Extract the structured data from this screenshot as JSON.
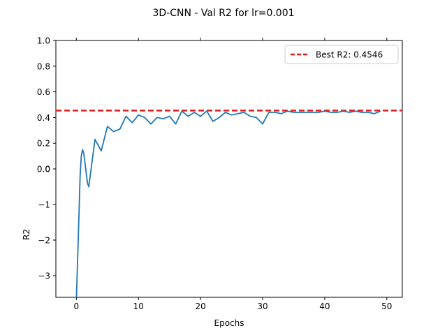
{
  "chart_data": {
    "type": "line",
    "title": "3D-CNN - Val R2 for lr=0.001",
    "xlabel": "Epochs",
    "ylabel": "R2",
    "xlim": [
      -3.3,
      52.5
    ],
    "x_ticks": [
      "0",
      "10",
      "20",
      "30",
      "40",
      "50"
    ],
    "x_tick_values": [
      0,
      10,
      20,
      30,
      40,
      50
    ],
    "y_scale": "piecewise: linear above 0, symlog-like compressed below 0",
    "y_ticks": [
      "1.0",
      "0.8",
      "0.6",
      "0.4",
      "0.2",
      "0.0",
      "0",
      "−1",
      "−2",
      "−3"
    ],
    "y_tick_values": [
      1.0,
      0.8,
      0.6,
      0.4,
      0.2,
      0.0,
      0,
      -1,
      -2,
      -3
    ],
    "ylim": [
      -3.7,
      1.0
    ],
    "grid": false,
    "legend_position": "upper right",
    "legend": [
      {
        "label": "Best R2: 0.4546",
        "color": "#e41a1c",
        "style": "dashed"
      }
    ],
    "best_r2": 0.4546,
    "series": [
      {
        "color": "#1f77b4",
        "x": [
          0,
          0.3,
          0.6,
          0.8,
          1.0,
          1.2,
          1.5,
          1.8,
          2.0,
          3,
          4,
          5,
          6,
          7,
          8,
          9,
          10,
          11,
          12,
          13,
          14,
          15,
          16,
          17,
          18,
          19,
          20,
          21,
          22,
          23,
          24,
          25,
          26,
          27,
          28,
          29,
          30,
          31,
          32,
          33,
          34,
          35,
          36,
          37,
          38,
          39,
          40,
          41,
          42,
          43,
          44,
          45,
          46,
          47,
          48,
          49
        ],
        "values": [
          -3.7,
          -2.0,
          -0.2,
          0.1,
          0.15,
          0.12,
          0.0,
          -0.4,
          -0.5,
          0.23,
          0.14,
          0.33,
          0.29,
          0.31,
          0.41,
          0.36,
          0.42,
          0.4,
          0.35,
          0.4,
          0.39,
          0.41,
          0.35,
          0.45,
          0.41,
          0.44,
          0.41,
          0.45,
          0.37,
          0.4,
          0.44,
          0.42,
          0.43,
          0.44,
          0.41,
          0.4,
          0.35,
          0.44,
          0.44,
          0.43,
          0.45,
          0.44,
          0.44,
          0.44,
          0.44,
          0.44,
          0.45,
          0.44,
          0.44,
          0.45,
          0.44,
          0.45,
          0.44,
          0.44,
          0.43,
          0.45
        ]
      }
    ]
  },
  "colors": {
    "line": "#1f77b4",
    "best": "#e41a1c",
    "axis": "#000000"
  }
}
